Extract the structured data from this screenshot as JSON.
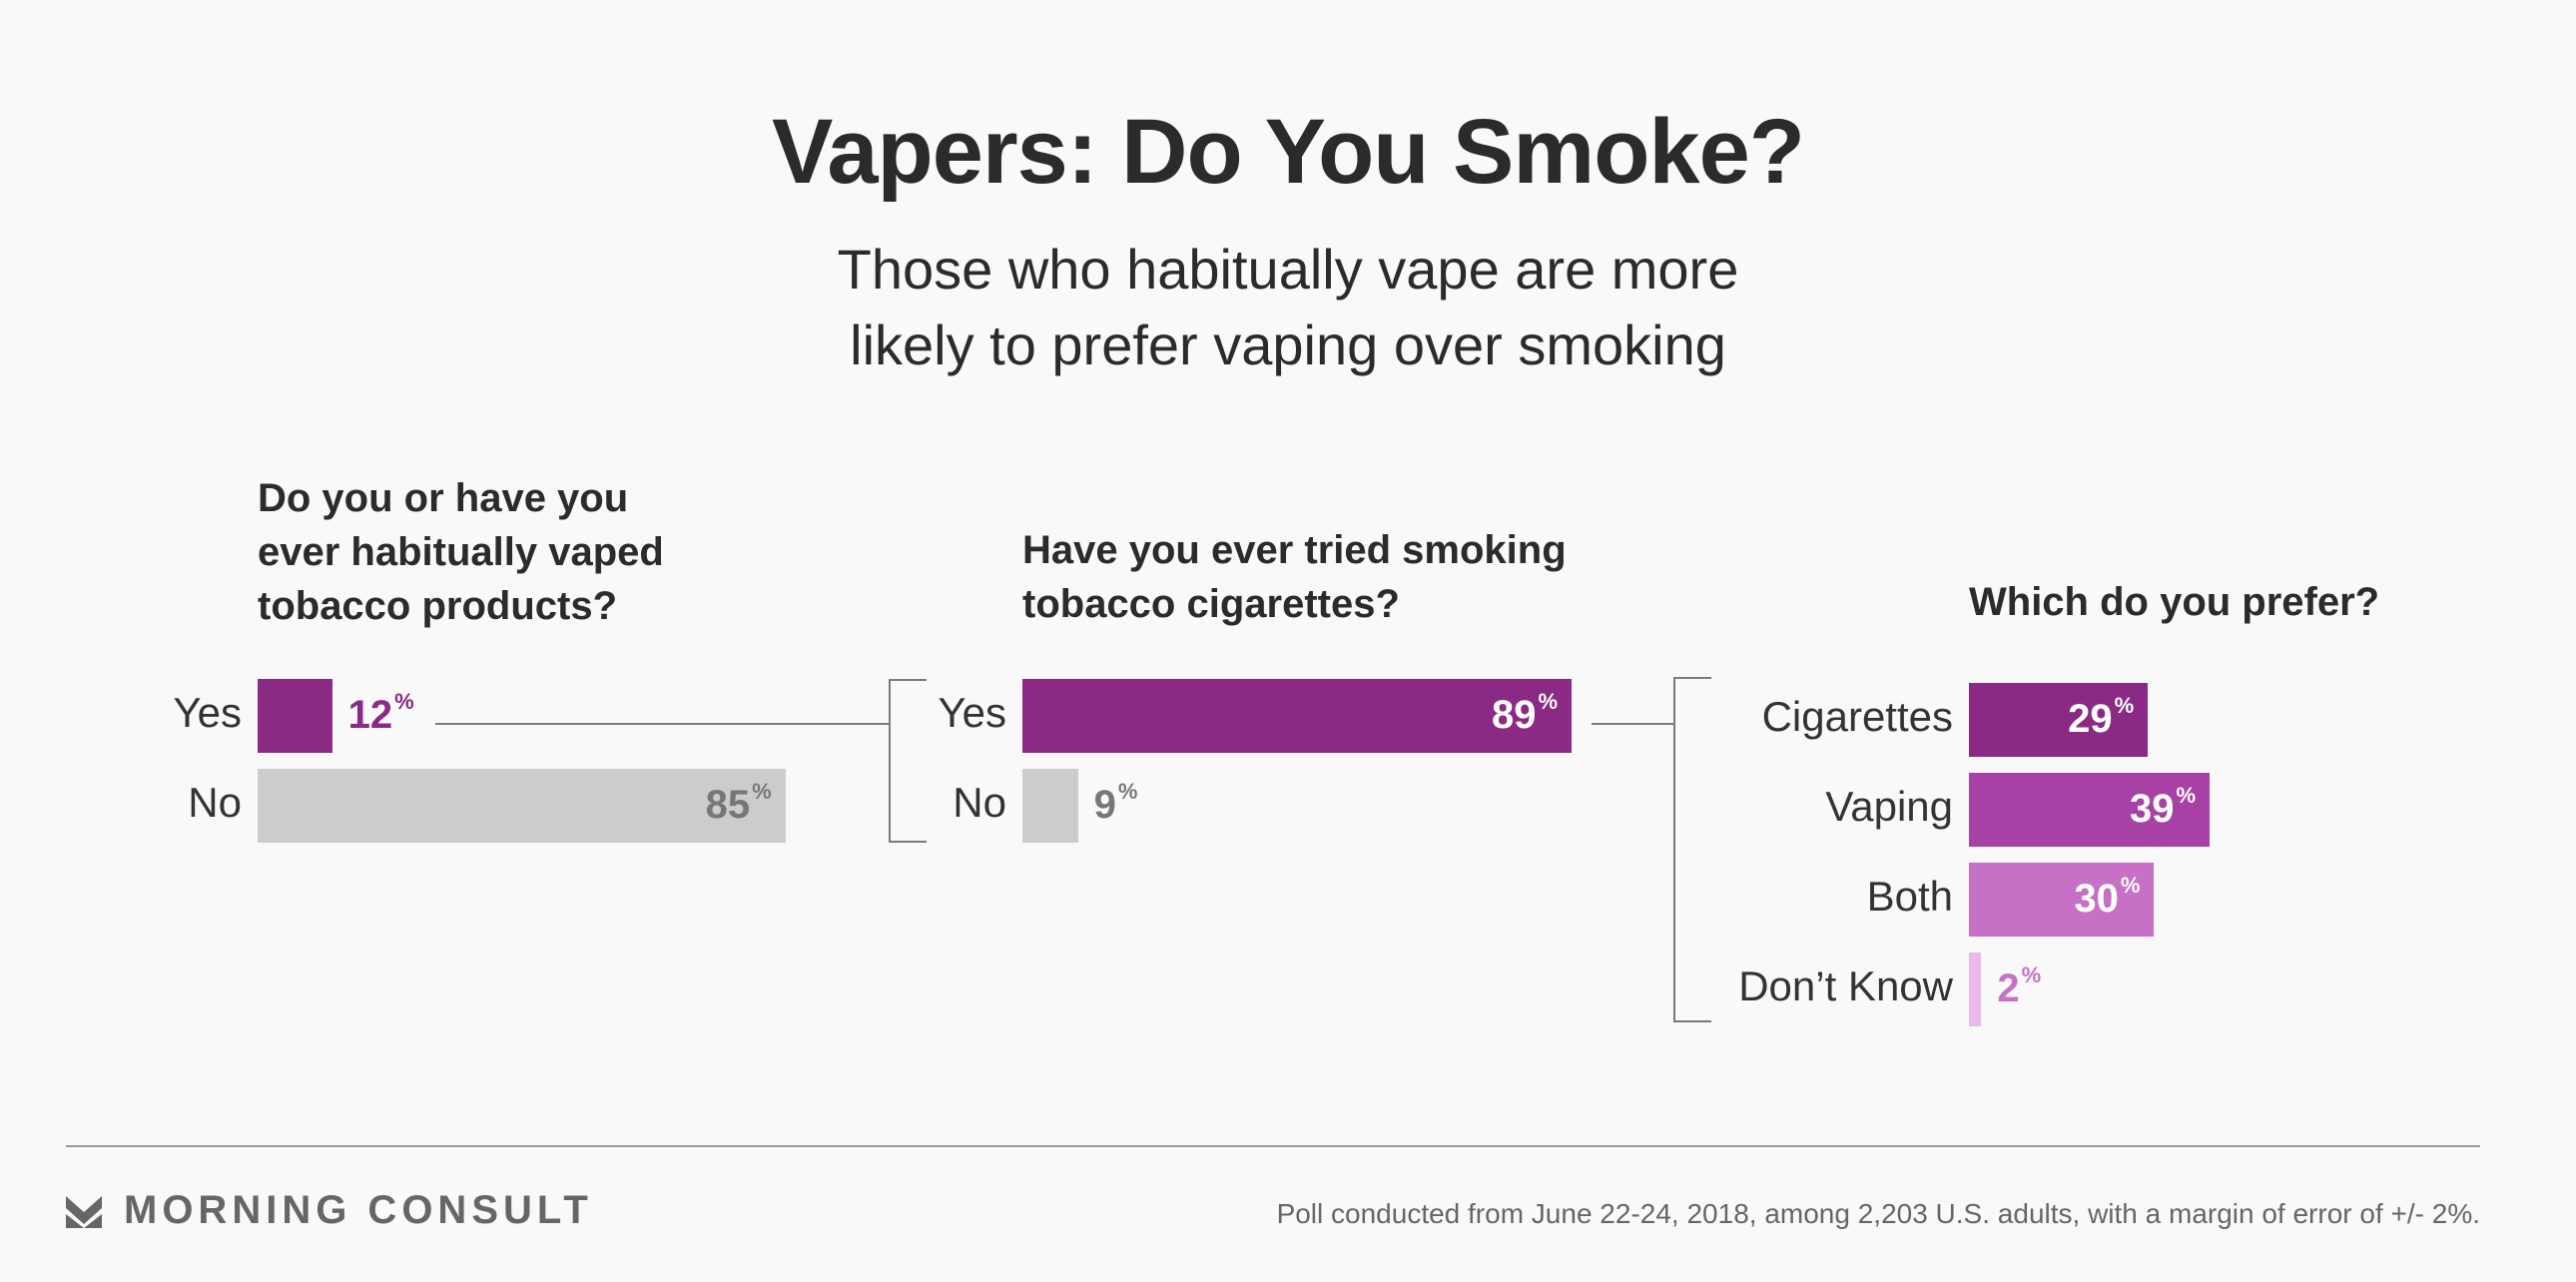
{
  "header": {
    "title": "Vapers: Do You Smoke?",
    "subtitle_line1": "Those who habitually vape are more",
    "subtitle_line2": "likely to prefer vaping over smoking"
  },
  "chart_data": [
    {
      "type": "bar",
      "orientation": "horizontal",
      "title": "Do you or have you ever habitually vaped tobacco products?",
      "title_lines": [
        "Do you or have you",
        "ever habitually vaped",
        "tobacco products?"
      ],
      "categories": [
        "Yes",
        "No"
      ],
      "values": [
        12,
        85
      ],
      "labels": [
        "12",
        "85"
      ],
      "unit": "%",
      "colors": [
        "#8b2a84",
        "#cccccc"
      ]
    },
    {
      "type": "bar",
      "orientation": "horizontal",
      "title": "Have you ever tried smoking tobacco cigarettes?",
      "title_lines": [
        "Have you ever tried smoking",
        "tobacco cigarettes?"
      ],
      "categories": [
        "Yes",
        "No"
      ],
      "values": [
        89,
        9
      ],
      "labels": [
        "89",
        "9"
      ],
      "unit": "%",
      "colors": [
        "#8b2a84",
        "#cccccc"
      ]
    },
    {
      "type": "bar",
      "orientation": "horizontal",
      "title": "Which do you prefer?",
      "title_lines": [
        "Which do you prefer?"
      ],
      "categories": [
        "Cigarettes",
        "Vaping",
        "Both",
        "Don’t Know"
      ],
      "values": [
        29,
        39,
        30,
        2
      ],
      "labels": [
        "29",
        "39",
        "30",
        "2"
      ],
      "unit": "%",
      "colors": [
        "#8b2a84",
        "#a841a5",
        "#c670c6",
        "#eab9ea"
      ]
    }
  ],
  "footer": {
    "brand": "MORNING CONSULT",
    "note": "Poll conducted from June 22-24, 2018, among 2,203 U.S. adults, with a margin of error of +/- 2%."
  },
  "colors": {
    "text_dark": "#2b2b2b",
    "gray_value": "#777777",
    "purple_dark": "#8b2a84"
  }
}
